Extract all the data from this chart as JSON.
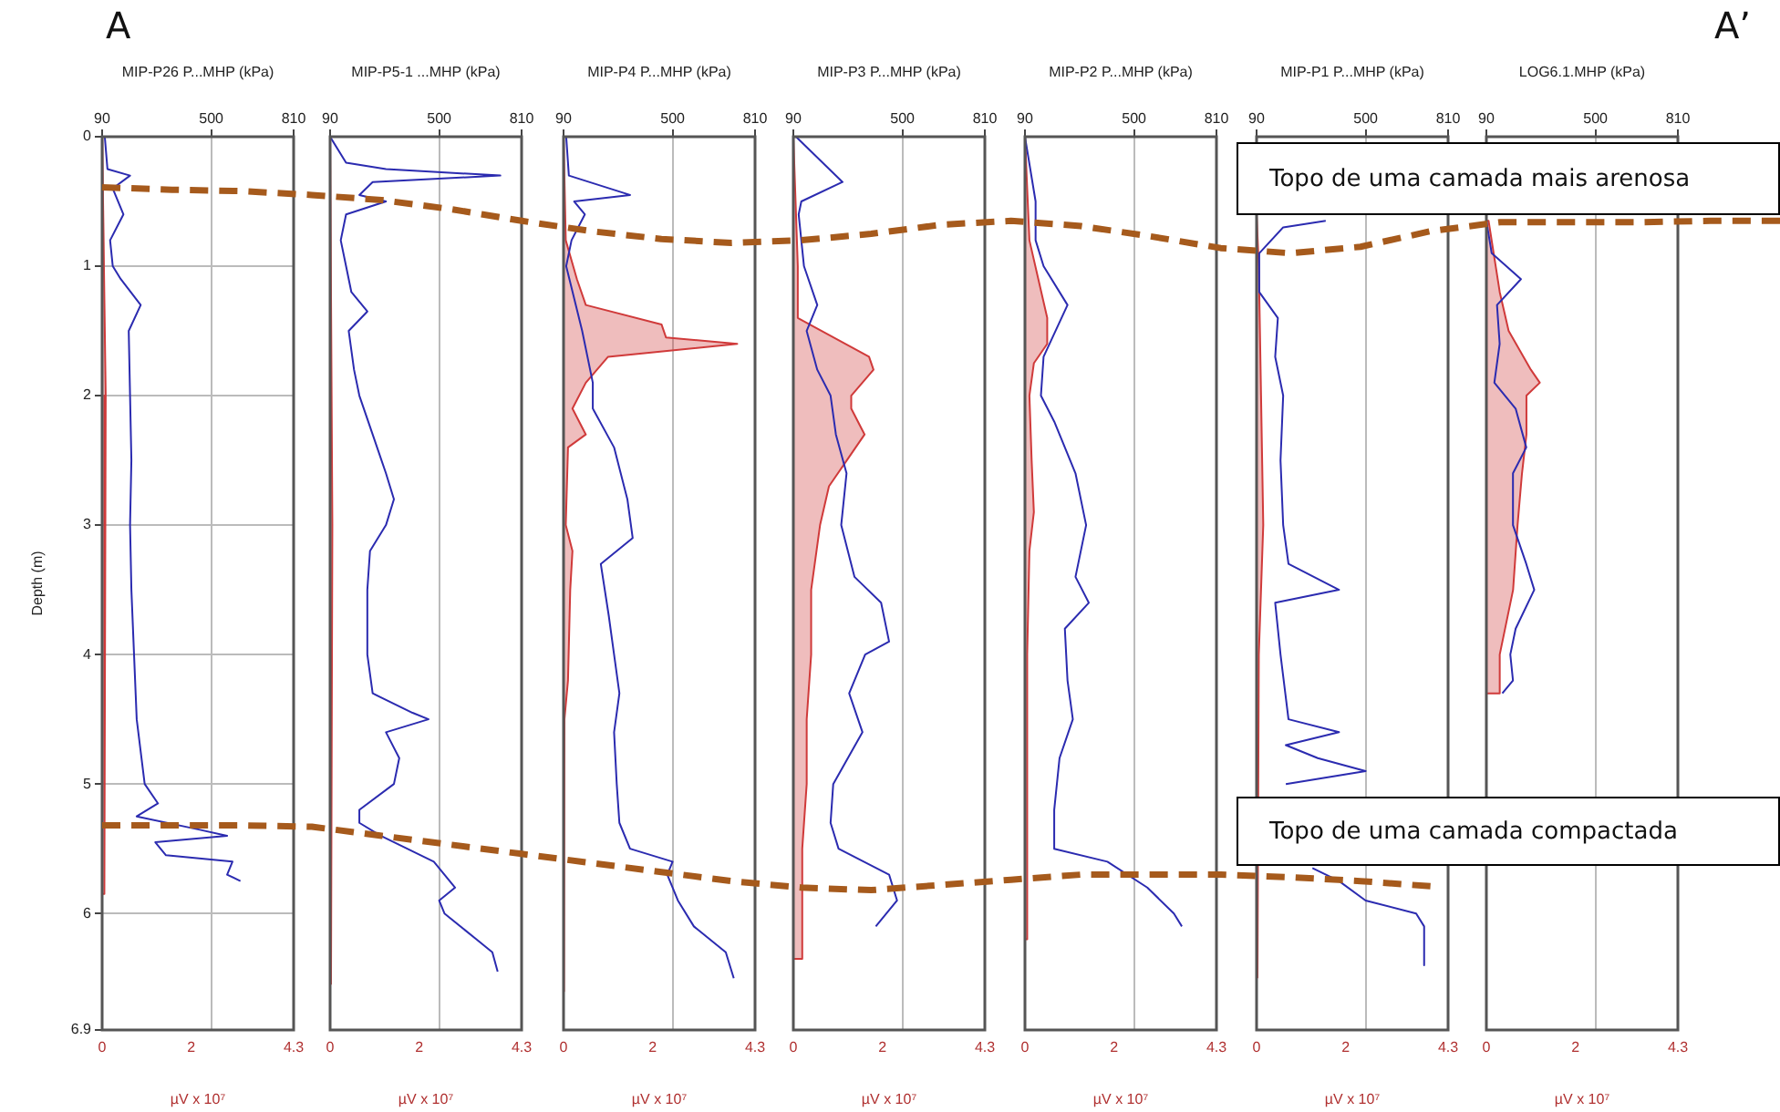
{
  "chart_data": [
    {
      "type": "line",
      "x2label": "MIP-P26 P...MHP (kPa)",
      "xlabel": "µV x 10⁷",
      "ylabel": "Depth (m)",
      "x2lim": [
        90,
        810
      ],
      "x2ticks": [
        90,
        500,
        810
      ],
      "xlim": [
        0,
        4.3
      ],
      "xticks": [
        0,
        2,
        4.3
      ],
      "ylim": [
        6.9,
        0
      ],
      "yticks": [
        0,
        1,
        2,
        3,
        4,
        5,
        6,
        6.9
      ],
      "grid": true,
      "annotations": [
        "A"
      ],
      "series": [
        {
          "type": "line",
          "axis": "x2",
          "color": "#2b2bb0",
          "x": [
            100,
            110,
            195,
            130,
            170,
            120,
            130,
            160,
            235,
            190,
            195,
            200,
            195,
            200,
            210,
            220,
            250,
            300,
            220,
            450,
            560,
            290,
            330,
            580,
            560,
            610
          ],
          "values": [
            0,
            0.25,
            0.3,
            0.4,
            0.6,
            0.8,
            1.0,
            1.1,
            1.3,
            1.5,
            2.0,
            2.5,
            3.0,
            3.5,
            4.0,
            4.5,
            5.0,
            5.15,
            5.25,
            5.35,
            5.4,
            5.45,
            5.55,
            5.6,
            5.7,
            5.75
          ]
        },
        {
          "type": "area",
          "color": "#d03a3a",
          "x": [
            0,
            0.03,
            0.08,
            0.05,
            0
          ],
          "values": [
            0,
            0,
            2,
            5.85,
            5.85
          ]
        }
      ]
    },
    {
      "type": "line",
      "x2label": "MIP-P5-1 ...MHP (kPa)",
      "xlabel": "µV x 10⁷",
      "x2lim": [
        90,
        810
      ],
      "x2ticks": [
        90,
        500,
        810
      ],
      "xlim": [
        0,
        4.3
      ],
      "xticks": [
        0,
        2,
        4.3
      ],
      "ylim": [
        6.9,
        0
      ],
      "yticks": [
        0,
        1,
        2,
        3,
        4,
        5,
        6,
        6.9
      ],
      "grid": true,
      "tick_labels": "x",
      "series": [
        {
          "type": "line",
          "axis": "x2",
          "color": "#2b2bb0",
          "x": [
            90,
            150,
            300,
            730,
            250,
            200,
            300,
            150,
            130,
            150,
            170,
            230,
            160,
            180,
            200,
            250,
            300,
            330,
            300,
            240,
            230,
            230,
            250,
            400,
            460,
            300,
            350,
            330,
            200,
            200,
            280,
            480,
            560,
            500,
            520,
            640,
            700,
            720
          ],
          "values": [
            0,
            0.2,
            0.25,
            0.3,
            0.35,
            0.45,
            0.5,
            0.6,
            0.8,
            1.0,
            1.2,
            1.35,
            1.5,
            1.8,
            2.0,
            2.3,
            2.6,
            2.8,
            3.0,
            3.2,
            3.5,
            4.0,
            4.3,
            4.45,
            4.5,
            4.6,
            4.8,
            5.0,
            5.2,
            5.3,
            5.4,
            5.6,
            5.8,
            5.9,
            6.0,
            6.2,
            6.3,
            6.45
          ]
        },
        {
          "type": "area",
          "color": "#d03a3a",
          "x": [
            0,
            0.02,
            0.05,
            0.02,
            0
          ],
          "values": [
            0,
            0,
            3,
            6.55,
            6.55
          ]
        }
      ]
    },
    {
      "type": "line",
      "x2label": "MIP-P4 P...MHP (kPa)",
      "xlabel": "µV x 10⁷",
      "x2lim": [
        90,
        810
      ],
      "x2ticks": [
        90,
        500,
        810
      ],
      "xlim": [
        0,
        4.3
      ],
      "xticks": [
        0,
        2,
        4.3
      ],
      "ylim": [
        6.9,
        0
      ],
      "yticks": [
        0,
        1,
        2,
        3,
        4,
        5,
        6,
        6.9
      ],
      "grid": true,
      "tick_labels": "x",
      "series": [
        {
          "type": "line",
          "axis": "x2",
          "color": "#2b2bb0",
          "x": [
            100,
            110,
            340,
            130,
            170,
            120,
            100,
            160,
            200,
            200,
            280,
            330,
            350,
            230,
            260,
            280,
            300,
            280,
            290,
            300,
            340,
            500,
            480,
            520,
            580,
            700,
            730
          ],
          "values": [
            0,
            0.3,
            0.45,
            0.5,
            0.6,
            0.8,
            1.0,
            1.5,
            1.9,
            2.1,
            2.4,
            2.8,
            3.1,
            3.3,
            3.7,
            4.0,
            4.3,
            4.6,
            5.0,
            5.3,
            5.5,
            5.6,
            5.7,
            5.9,
            6.1,
            6.3,
            6.5
          ]
        },
        {
          "type": "area",
          "color": "#d03a3a",
          "x": [
            0,
            0.05,
            0.3,
            0.5,
            2.2,
            2.3,
            3.9,
            1.0,
            0.5,
            0.2,
            0.5,
            0.1,
            0.05,
            0.2,
            0.15,
            0.1,
            0.02,
            0.02,
            0
          ],
          "values": [
            0,
            0.8,
            1.1,
            1.3,
            1.45,
            1.55,
            1.6,
            1.7,
            1.9,
            2.1,
            2.3,
            2.4,
            3.0,
            3.2,
            3.5,
            4.2,
            4.5,
            6.6,
            6.6
          ]
        }
      ]
    },
    {
      "type": "line",
      "x2label": "MIP-P3 P...MHP (kPa)",
      "xlabel": "µV x 10⁷",
      "x2lim": [
        90,
        810
      ],
      "x2ticks": [
        90,
        500,
        810
      ],
      "xlim": [
        0,
        4.3
      ],
      "xticks": [
        0,
        2,
        4.3
      ],
      "ylim": [
        6.9,
        0
      ],
      "yticks": [
        0,
        1,
        2,
        3,
        4,
        5,
        6,
        6.9
      ],
      "grid": true,
      "tick_labels": "x",
      "series": [
        {
          "type": "line",
          "axis": "x2",
          "color": "#2b2bb0",
          "x": [
            100,
            275,
            120,
            110,
            130,
            180,
            140,
            180,
            230,
            250,
            290,
            270,
            320,
            420,
            450,
            360,
            300,
            350,
            240,
            230,
            260,
            450,
            480,
            400
          ],
          "values": [
            0,
            0.35,
            0.5,
            0.6,
            1.0,
            1.3,
            1.5,
            1.8,
            2.0,
            2.3,
            2.6,
            3.0,
            3.4,
            3.6,
            3.9,
            4.0,
            4.3,
            4.6,
            5.0,
            5.3,
            5.5,
            5.7,
            5.9,
            6.1
          ]
        },
        {
          "type": "area",
          "color": "#d03a3a",
          "x": [
            0,
            0.1,
            0.1,
            1.7,
            1.8,
            1.3,
            1.3,
            1.6,
            1.2,
            0.8,
            0.6,
            0.4,
            0.4,
            0.3,
            0.3,
            0.2,
            0.2,
            0.2,
            0
          ],
          "values": [
            0,
            1.0,
            1.4,
            1.7,
            1.8,
            2.0,
            2.1,
            2.3,
            2.5,
            2.7,
            3.0,
            3.5,
            4.0,
            4.5,
            5.0,
            5.5,
            6.0,
            6.35,
            6.35
          ]
        }
      ]
    },
    {
      "type": "line",
      "x2label": "MIP-P2 P...MHP (kPa)",
      "xlabel": "µV x 10⁷",
      "x2lim": [
        90,
        810
      ],
      "x2ticks": [
        90,
        500,
        810
      ],
      "xlim": [
        0,
        4.3
      ],
      "xticks": [
        0,
        2,
        4.3
      ],
      "ylim": [
        6.9,
        0
      ],
      "yticks": [
        0,
        1,
        2,
        3,
        4,
        5,
        6,
        6.9
      ],
      "grid": true,
      "tick_labels": "x",
      "series": [
        {
          "type": "line",
          "axis": "x2",
          "color": "#2b2bb0",
          "x": [
            90,
            130,
            130,
            160,
            250,
            160,
            150,
            200,
            280,
            320,
            280,
            330,
            240,
            250,
            270,
            220,
            200,
            200,
            400,
            550,
            650,
            680
          ],
          "values": [
            0,
            0.5,
            0.8,
            1.0,
            1.3,
            1.7,
            2.0,
            2.2,
            2.6,
            3.0,
            3.4,
            3.6,
            3.8,
            4.2,
            4.5,
            4.8,
            5.2,
            5.5,
            5.6,
            5.8,
            6.0,
            6.1
          ]
        },
        {
          "type": "area",
          "color": "#d03a3a",
          "x": [
            0,
            0.1,
            0.3,
            0.5,
            0.5,
            0.2,
            0.1,
            0.15,
            0.2,
            0.1,
            0.05,
            0.05,
            0
          ],
          "values": [
            0,
            0.8,
            1.1,
            1.4,
            1.6,
            1.75,
            2.0,
            2.5,
            2.9,
            3.2,
            4.0,
            6.2,
            6.2
          ]
        }
      ]
    },
    {
      "type": "line",
      "x2label": "MIP-P1 P...MHP (kPa)",
      "xlabel": "µV x 10⁷",
      "x2lim": [
        90,
        810
      ],
      "x2ticks": [
        90,
        500,
        810
      ],
      "xlim": [
        0,
        4.3
      ],
      "xticks": [
        0,
        2,
        4.3
      ],
      "ylim": [
        6.9,
        0
      ],
      "yticks": [
        0,
        1,
        2,
        3,
        4,
        5,
        6,
        6.9
      ],
      "grid": true,
      "tick_labels": "x",
      "series": [
        {
          "type": "line",
          "axis": "x2",
          "color": "#2b2bb0",
          "x": [
            350,
            190,
            100,
            100,
            170,
            160,
            190,
            180,
            190,
            210,
            400,
            160,
            180,
            210,
            400,
            200,
            320,
            500,
            200,
            null,
            300,
            400,
            500,
            690,
            720,
            720
          ],
          "values": [
            0.65,
            0.7,
            0.9,
            1.2,
            1.4,
            1.7,
            2.0,
            2.5,
            3.0,
            3.3,
            3.5,
            3.6,
            4.0,
            4.5,
            4.6,
            4.7,
            4.8,
            4.9,
            5.0,
            null,
            5.65,
            5.75,
            5.9,
            6.0,
            6.1,
            6.4
          ]
        },
        {
          "type": "area",
          "color": "#d03a3a",
          "x": [
            0,
            0.02,
            0.05,
            0.1,
            0.15,
            0.05,
            0.02,
            0
          ],
          "values": [
            0.6,
            0.6,
            1.0,
            2.0,
            3.0,
            4.0,
            6.5,
            6.5
          ]
        }
      ]
    },
    {
      "type": "line",
      "x2label": "LOG6.1.MHP (kPa)",
      "xlabel": "µV x 10⁷",
      "x2lim": [
        90,
        810
      ],
      "x2ticks": [
        90,
        500,
        810
      ],
      "xlim": [
        0,
        4.3
      ],
      "xticks": [
        0,
        2,
        4.3
      ],
      "ylim": [
        6.9,
        0
      ],
      "yticks": [
        0,
        1,
        2,
        3,
        4,
        5,
        6,
        6.9
      ],
      "grid": true,
      "tick_labels": "x",
      "annotations": [
        "A’",
        "Topo de uma camada mais arenosa",
        "Topo de uma camada compactada"
      ],
      "series": [
        {
          "type": "line",
          "axis": "x2",
          "color": "#2b2bb0",
          "x": [
            90,
            110,
            220,
            130,
            140,
            120,
            200,
            240,
            190,
            190,
            240,
            270,
            200,
            180,
            190,
            150
          ],
          "values": [
            0.65,
            0.9,
            1.1,
            1.3,
            1.6,
            1.9,
            2.1,
            2.4,
            2.6,
            3.0,
            3.3,
            3.5,
            3.8,
            4.0,
            4.2,
            4.3
          ]
        },
        {
          "type": "area",
          "color": "#d03a3a",
          "x": [
            0,
            0.05,
            0.3,
            0.5,
            1.0,
            1.2,
            0.9,
            0.9,
            0.8,
            0.7,
            0.6,
            0.3,
            0.3,
            0
          ],
          "values": [
            0.65,
            0.65,
            1.2,
            1.5,
            1.8,
            1.9,
            2.0,
            2.3,
            2.6,
            3.0,
            3.5,
            4.0,
            4.3,
            4.3
          ]
        }
      ]
    },
    {
      "type": "line",
      "categories": [
        null,
        null,
        null,
        null,
        null,
        null,
        null,
        null,
        null,
        null,
        null,
        null,
        null,
        null,
        null,
        null,
        null,
        null,
        null,
        null,
        null,
        null,
        null,
        null,
        null
      ],
      "ylim": [
        6.9,
        0
      ],
      "tick_labels": false,
      "line_style": "dashed",
      "series": [
        {
          "color": "#a65a1c",
          "values": [
            0.39,
            0.41,
            0.42,
            0.45,
            0.49,
            0.56,
            0.65,
            0.73,
            0.79,
            0.82,
            0.8,
            0.75,
            0.68,
            0.65,
            0.69,
            0.77,
            0.86,
            0.9,
            0.85,
            0.73,
            0.66,
            0.66,
            0.66,
            0.65,
            0.65
          ]
        },
        {
          "color": "#a65a1c",
          "values": [
            5.32,
            5.32,
            5.32,
            5.33,
            5.4,
            5.47,
            5.54,
            5.61,
            5.68,
            5.75,
            5.8,
            5.82,
            5.78,
            5.74,
            5.7,
            5.7,
            5.7,
            5.72,
            5.75,
            5.79,
            null,
            null,
            null,
            null,
            null
          ]
        }
      ]
    }
  ]
}
